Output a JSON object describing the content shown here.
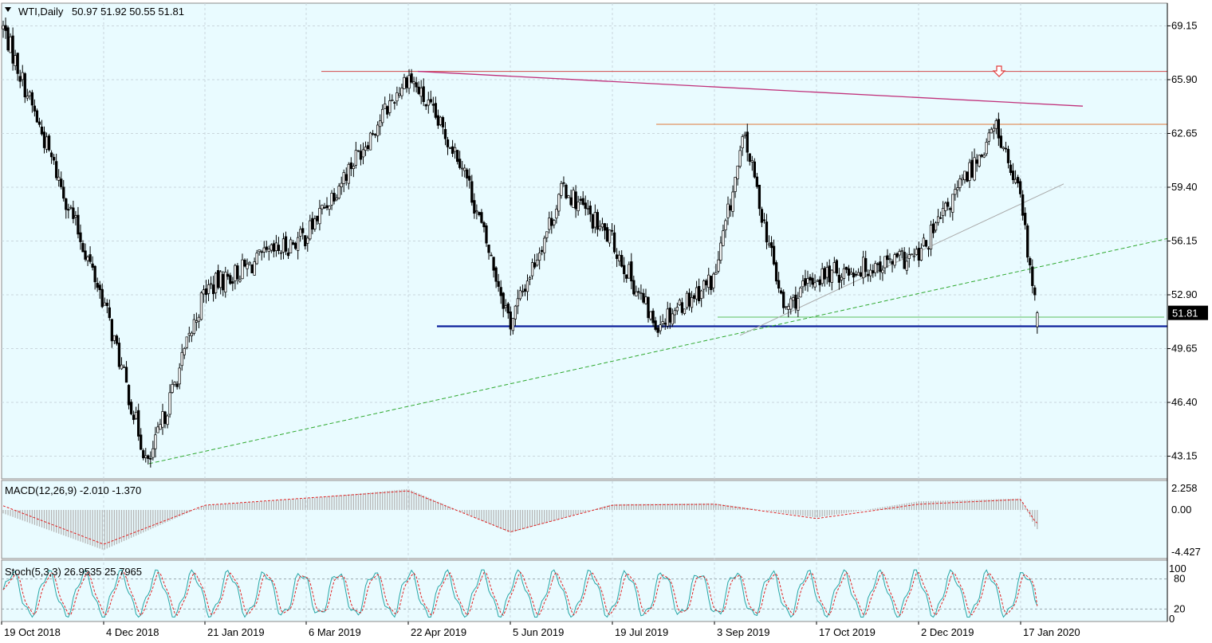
{
  "symbol_header": {
    "name": "WTI,Daily",
    "ohlc": "50.97 51.92 50.55 51.81"
  },
  "colors": {
    "background": "#e9fbff",
    "bullish_candle": "#ffffff",
    "bearish_candle": "#000000",
    "grid": "#c9d6dc",
    "support_line": "#0b1f9c",
    "resistance_line": "#d34a4a",
    "trend_line": "#c0307a",
    "dashed_trend": "#2ea82e",
    "macd_histogram": "#b5b5b5",
    "macd_signal": "#e02020",
    "stoch_main": "#26a6a6",
    "stoch_signal": "#e02020",
    "arrow": "#e23c3c"
  },
  "chart_data": [
    {
      "type": "candlestick",
      "title": "WTI,Daily",
      "y_ticks": [
        "69.15",
        "65.90",
        "62.65",
        "59.40",
        "56.15",
        "52.90",
        "49.65",
        "46.40",
        "43.15"
      ],
      "ylim": [
        41.78,
        70.52
      ],
      "current_price": "51.81",
      "x_ticks": [
        "19 Oct 2018",
        "4 Dec 2018",
        "21 Jan 2019",
        "6 Mar 2019",
        "22 Apr 2019",
        "5 Jun 2019",
        "19 Jul 2019",
        "3 Sep 2019",
        "17 Oct 2019",
        "2 Dec 2019",
        "17 Jan 2020"
      ],
      "key_points": [
        {
          "date": "19 Oct 2018",
          "price": 69.3
        },
        {
          "date": "4 Dec 2018",
          "price": 52.5
        },
        {
          "date": "25 Dec 2018",
          "price": 42.5
        },
        {
          "date": "21 Jan 2019",
          "price": 53.2
        },
        {
          "date": "6 Mar 2019",
          "price": 56.5
        },
        {
          "date": "22 Apr 2019",
          "price": 66.2
        },
        {
          "date": "15 May 2019",
          "price": 61.0
        },
        {
          "date": "5 Jun 2019",
          "price": 51.2
        },
        {
          "date": "28 Jun 2019",
          "price": 59.4
        },
        {
          "date": "19 Jul 2019",
          "price": 56.1
        },
        {
          "date": "7 Aug 2019",
          "price": 51.1
        },
        {
          "date": "3 Sep 2019",
          "price": 53.9
        },
        {
          "date": "16 Sep 2019",
          "price": 62.5
        },
        {
          "date": "3 Oct 2019",
          "price": 51.9
        },
        {
          "date": "17 Oct 2019",
          "price": 54.0
        },
        {
          "date": "2 Dec 2019",
          "price": 55.2
        },
        {
          "date": "6 Jan 2020",
          "price": 63.1
        },
        {
          "date": "17 Jan 2020",
          "price": 58.5
        },
        {
          "date": "24 Jan 2020",
          "price": 51.81
        }
      ],
      "levels": [
        {
          "name": "resistance",
          "price": 66.4,
          "from": "22 Apr 2019"
        },
        {
          "name": "resistance",
          "price": 63.2,
          "from": "19 Jul 2019"
        },
        {
          "name": "support",
          "price": 51.0,
          "from": "22 Apr 2019"
        },
        {
          "name": "support",
          "price": 51.55,
          "from": "3 Sep 2019"
        }
      ]
    },
    {
      "type": "histogram+line",
      "title": "MACD(12,26,9) -2.010 -1.370",
      "y_ticks": [
        "2.258",
        "0.00",
        "-4.427"
      ],
      "ylim": [
        -4.427,
        2.258
      ],
      "histogram_key_points": [
        {
          "date": "19 Oct 2018",
          "value": -0.3
        },
        {
          "date": "4 Dec 2018",
          "value": -4.2
        },
        {
          "date": "21 Jan 2019",
          "value": 0.5
        },
        {
          "date": "6 Mar 2019",
          "value": 1.2
        },
        {
          "date": "22 Apr 2019",
          "value": 2.2
        },
        {
          "date": "5 Jun 2019",
          "value": -2.4
        },
        {
          "date": "19 Jul 2019",
          "value": 0.6
        },
        {
          "date": "3 Sep 2019",
          "value": 0.7
        },
        {
          "date": "17 Oct 2019",
          "value": -0.8
        },
        {
          "date": "2 Dec 2019",
          "value": 0.9
        },
        {
          "date": "17 Jan 2020",
          "value": 1.2
        },
        {
          "date": "24 Jan 2020",
          "value": -2.01
        }
      ],
      "signal_key_points": [
        {
          "date": "19 Oct 2018",
          "value": 0.5
        },
        {
          "date": "4 Dec 2018",
          "value": -3.6
        },
        {
          "date": "21 Jan 2019",
          "value": 0.5
        },
        {
          "date": "22 Apr 2019",
          "value": 2.0
        },
        {
          "date": "5 Jun 2019",
          "value": -2.3
        },
        {
          "date": "19 Jul 2019",
          "value": 0.5
        },
        {
          "date": "3 Sep 2019",
          "value": 0.6
        },
        {
          "date": "17 Oct 2019",
          "value": -0.9
        },
        {
          "date": "2 Dec 2019",
          "value": 0.6
        },
        {
          "date": "17 Jan 2020",
          "value": 1.1
        },
        {
          "date": "24 Jan 2020",
          "value": -1.37
        }
      ]
    },
    {
      "type": "line",
      "title": "Stoch(5,3,3) 26.9535 25.7965",
      "y_ticks": [
        "100",
        "80",
        "20",
        "0"
      ],
      "ylim": [
        0,
        100
      ],
      "series": [
        {
          "name": "main",
          "last": 26.9535
        },
        {
          "name": "signal",
          "last": 25.7965
        }
      ]
    }
  ]
}
